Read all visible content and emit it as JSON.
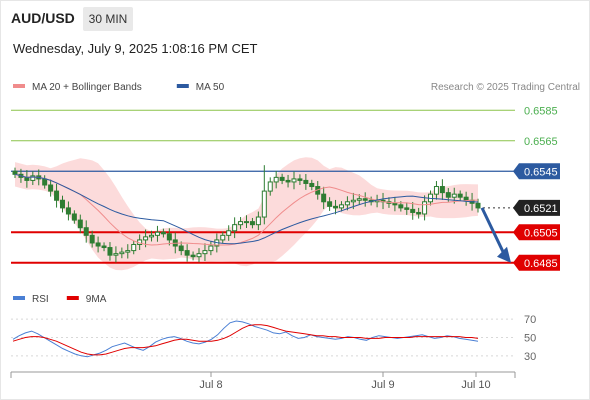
{
  "header": {
    "pair": "AUD/USD",
    "timeframe": "30 MIN",
    "datetime": "Wednesday, July 9, 2025 1:08:16 PM CET"
  },
  "colors": {
    "ma20": "#f08c8c",
    "bollinger_fill": "#fbd5d5",
    "ma50": "#2c5aa0",
    "candle": "#2e7d32",
    "target_line": "#8bc34a",
    "pivot_line": "#2c5aa0",
    "support_line": "#e00000",
    "rsi": "#4a7fd4",
    "rsi_ma": "#e00000",
    "arrow": "#2c5aa0",
    "tag_dark": "#222222"
  },
  "chart_data": [
    {
      "type": "candlestick",
      "legend": [
        {
          "label": "MA 20 + Bollinger Bands",
          "color": "#f08c8c"
        },
        {
          "label": "MA 50",
          "color": "#2c5aa0"
        }
      ],
      "credit": "Research © 2025 Trading Central",
      "ylim": [
        0.6477,
        0.6595
      ],
      "levels": [
        {
          "value": 0.6585,
          "label": "0.6585",
          "kind": "target"
        },
        {
          "value": 0.6565,
          "label": "0.6565",
          "kind": "target"
        },
        {
          "value": 0.6545,
          "label": "0.6545",
          "kind": "pivot"
        },
        {
          "value": 0.6521,
          "label": "0.6521",
          "kind": "last"
        },
        {
          "value": 0.6505,
          "label": "0.6505",
          "kind": "support"
        },
        {
          "value": 0.6485,
          "label": "0.6485",
          "kind": "support"
        }
      ],
      "last_price": 0.6521,
      "close": [
        0.6543,
        0.6541,
        0.6539,
        0.6542,
        0.654,
        0.6536,
        0.6532,
        0.6526,
        0.6521,
        0.6517,
        0.6513,
        0.6508,
        0.6503,
        0.6498,
        0.6496,
        0.6495,
        0.649,
        0.6491,
        0.6492,
        0.6493,
        0.6497,
        0.65,
        0.6502,
        0.6503,
        0.6505,
        0.6504,
        0.65,
        0.6496,
        0.6493,
        0.649,
        0.6489,
        0.6491,
        0.6493,
        0.6496,
        0.65,
        0.6503,
        0.6506,
        0.651,
        0.6512,
        0.6512,
        0.651,
        0.6515,
        0.6532,
        0.6538,
        0.6541,
        0.6539,
        0.6538,
        0.654,
        0.6539,
        0.6537,
        0.6535,
        0.653,
        0.6525,
        0.6522,
        0.6521,
        0.6523,
        0.6525,
        0.6526,
        0.6527,
        0.6526,
        0.6525,
        0.6526,
        0.6525,
        0.6524,
        0.6523,
        0.6521,
        0.652,
        0.6518,
        0.6517,
        0.6525,
        0.653,
        0.6535,
        0.6531,
        0.6528,
        0.653,
        0.6528,
        0.6526,
        0.6524,
        0.6521
      ],
      "forecast": {
        "from": 0.6521,
        "to": 0.6485
      }
    },
    {
      "type": "line",
      "legend": [
        {
          "label": "RSI",
          "color": "#4a7fd4"
        },
        {
          "label": "9MA",
          "color": "#e00000"
        }
      ],
      "ylim": [
        20,
        80
      ],
      "ticks": [
        "70",
        "50",
        "30"
      ],
      "tick_values": [
        70,
        50,
        30
      ],
      "series": [
        {
          "name": "RSI",
          "values": [
            48,
            52,
            55,
            57,
            54,
            50,
            46,
            42,
            38,
            35,
            32,
            30,
            29,
            31,
            33,
            36,
            40,
            42,
            44,
            41,
            38,
            36,
            40,
            45,
            48,
            50,
            51,
            49,
            46,
            44,
            43,
            45,
            48,
            53,
            60,
            66,
            68,
            67,
            65,
            62,
            60,
            58,
            55,
            54,
            56,
            52,
            49,
            50,
            53,
            51,
            50,
            49,
            48,
            49,
            51,
            50,
            48,
            47,
            50,
            52,
            51,
            50,
            49,
            50,
            51,
            52,
            53,
            51,
            49,
            50,
            52,
            51,
            49,
            48,
            47,
            46
          ]
        },
        {
          "name": "9MA",
          "values": [
            46,
            48,
            50,
            51,
            51,
            50,
            48,
            46,
            43,
            40,
            37,
            34,
            32,
            31,
            31,
            32,
            34,
            36,
            38,
            39,
            39,
            39,
            40,
            41,
            43,
            45,
            47,
            48,
            48,
            47,
            46,
            46,
            46,
            47,
            49,
            52,
            56,
            60,
            63,
            64,
            64,
            63,
            61,
            59,
            57,
            56,
            55,
            54,
            53,
            52,
            52,
            51,
            51,
            50,
            50,
            50,
            50,
            49,
            49,
            49,
            50,
            50,
            50,
            50,
            50,
            51,
            51,
            51,
            51,
            51,
            51,
            51,
            51,
            50,
            50,
            49
          ]
        }
      ]
    }
  ],
  "xaxis": {
    "labels": [
      "Jul 8",
      "Jul 9",
      "Jul 10"
    ],
    "label_fracs": [
      0.23,
      0.52,
      0.66
    ]
  }
}
